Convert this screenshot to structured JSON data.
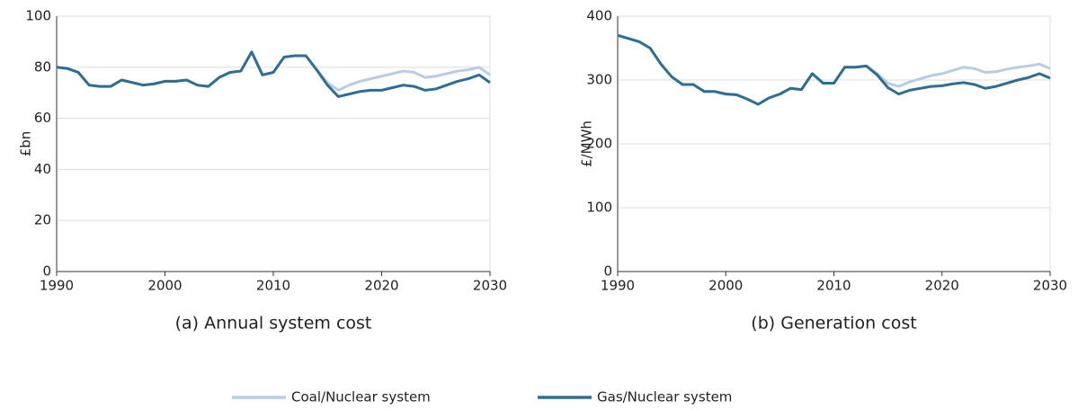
{
  "chart_data": [
    {
      "type": "line",
      "title": "(a) Annual system cost",
      "y_label": "£bn",
      "x": [
        1990,
        1991,
        1992,
        1993,
        1994,
        1995,
        1996,
        1997,
        1998,
        1999,
        2000,
        2001,
        2002,
        2003,
        2004,
        2005,
        2006,
        2007,
        2008,
        2009,
        2010,
        2011,
        2012,
        2013,
        2014,
        2015,
        2016,
        2017,
        2018,
        2019,
        2020,
        2021,
        2022,
        2023,
        2024,
        2025,
        2026,
        2027,
        2028,
        2029,
        2030
      ],
      "series": [
        {
          "name": "Coal/Nuclear system",
          "color": "#b8cce4",
          "values": [
            80,
            79.5,
            78,
            73,
            72.5,
            72.5,
            75,
            74,
            73,
            73.5,
            74.5,
            74.5,
            75,
            73,
            72.5,
            76,
            78,
            78.5,
            86,
            77,
            78,
            84,
            84.5,
            84.5,
            79,
            74,
            71,
            73,
            74.5,
            75.5,
            76.5,
            77.5,
            78.5,
            78,
            76,
            76.5,
            77.5,
            78.5,
            79,
            80,
            77
          ]
        },
        {
          "name": "Gas/Nuclear system",
          "color": "#2e6e94",
          "values": [
            80,
            79.5,
            78,
            73,
            72.5,
            72.5,
            75,
            74,
            73,
            73.5,
            74.5,
            74.5,
            75,
            73,
            72.5,
            76,
            78,
            78.5,
            86,
            77,
            78,
            84,
            84.5,
            84.5,
            79,
            73,
            68.5,
            69.5,
            70.5,
            71,
            71,
            72,
            73,
            72.5,
            71,
            71.5,
            73,
            74.5,
            75.5,
            77,
            74
          ]
        }
      ],
      "xlim": [
        1990,
        2030
      ],
      "xticks": [
        1990,
        2000,
        2010,
        2020,
        2030
      ],
      "ylim": [
        0,
        100
      ],
      "yticks": [
        0,
        20,
        40,
        60,
        80,
        100
      ],
      "grid": true
    },
    {
      "type": "line",
      "title": "(b) Generation cost",
      "y_label": "£/MWh",
      "x": [
        1990,
        1991,
        1992,
        1993,
        1994,
        1995,
        1996,
        1997,
        1998,
        1999,
        2000,
        2001,
        2002,
        2003,
        2004,
        2005,
        2006,
        2007,
        2008,
        2009,
        2010,
        2011,
        2012,
        2013,
        2014,
        2015,
        2016,
        2017,
        2018,
        2019,
        2020,
        2021,
        2022,
        2023,
        2024,
        2025,
        2026,
        2027,
        2028,
        2029,
        2030
      ],
      "series": [
        {
          "name": "Coal/Nuclear system",
          "color": "#b8cce4",
          "values": [
            370,
            365,
            360,
            350,
            325,
            305,
            293,
            293,
            282,
            282,
            278,
            277,
            270,
            262,
            272,
            278,
            287,
            285,
            310,
            295,
            295,
            320,
            320,
            322,
            310,
            295,
            290,
            297,
            302,
            307,
            310,
            315,
            320,
            318,
            312,
            313,
            317,
            320,
            322,
            325,
            318
          ]
        },
        {
          "name": "Gas/Nuclear system",
          "color": "#2e6e94",
          "values": [
            370,
            365,
            360,
            350,
            325,
            305,
            293,
            293,
            282,
            282,
            278,
            277,
            270,
            262,
            272,
            278,
            287,
            285,
            310,
            295,
            295,
            320,
            320,
            322,
            308,
            288,
            278,
            284,
            287,
            290,
            291,
            294,
            296,
            293,
            287,
            290,
            295,
            300,
            304,
            310,
            303
          ]
        }
      ],
      "xlim": [
        1990,
        2030
      ],
      "xticks": [
        1990,
        2000,
        2010,
        2020,
        2030
      ],
      "ylim": [
        0,
        400
      ],
      "yticks": [
        0,
        100,
        200,
        300,
        400
      ],
      "grid": true
    }
  ]
}
